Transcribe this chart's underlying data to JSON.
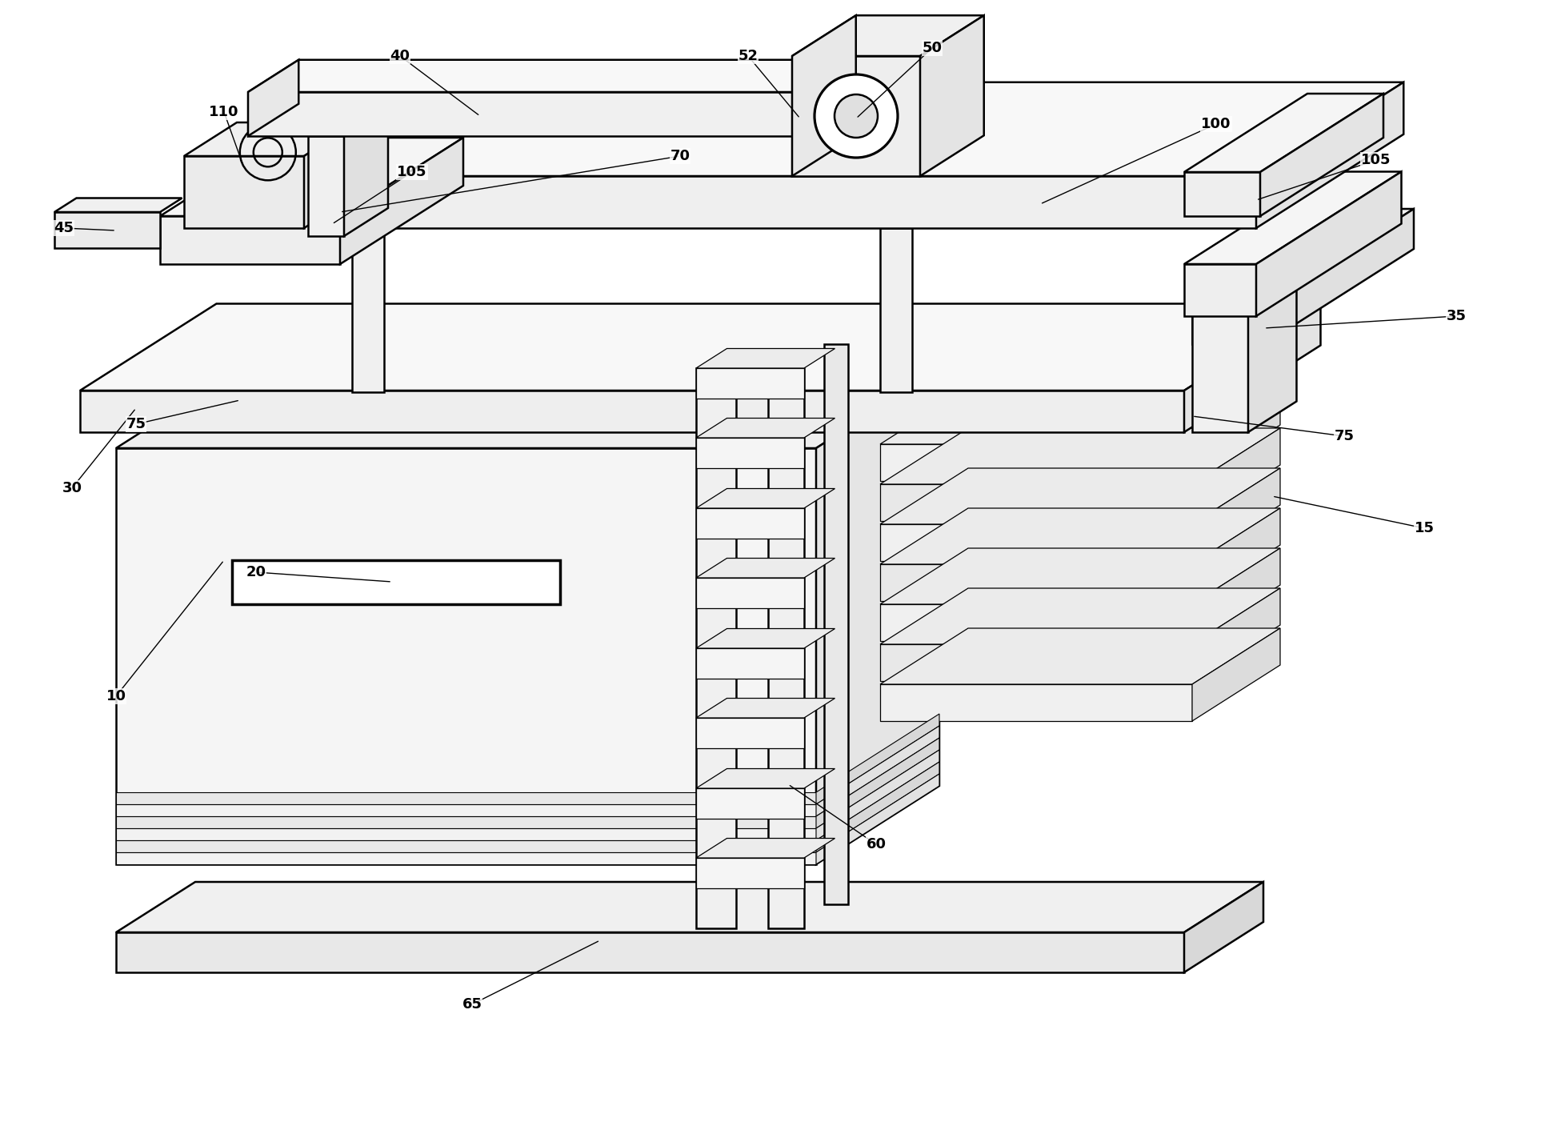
{
  "bg_color": "#ffffff",
  "line_color": "#000000",
  "line_width": 1.8,
  "label_fontsize": 13,
  "figsize": [
    19.51,
    14.02
  ],
  "dpi": 100
}
